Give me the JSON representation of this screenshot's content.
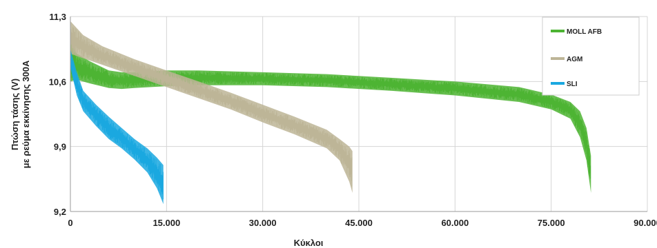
{
  "chart_data": {
    "type": "line",
    "title": "",
    "xlabel": "Κύκλοι",
    "ylabel_line1": "Πτώση τάσης (V)",
    "ylabel_line2": "με ρεύμα εκκίνησης 300A",
    "xlim": [
      0,
      90000
    ],
    "ylim": [
      9.2,
      11.3
    ],
    "x_ticks": [
      0,
      15000,
      30000,
      45000,
      60000,
      75000,
      90000
    ],
    "x_tick_labels": [
      "0",
      "15.000",
      "30.000",
      "45.000",
      "60.000",
      "75.000",
      "90.000"
    ],
    "y_ticks": [
      9.2,
      9.9,
      10.6,
      11.3
    ],
    "y_tick_labels": [
      "9,2",
      "9,9",
      "10,6",
      "11,3"
    ],
    "grid": true,
    "legend_position": "top-right",
    "series": [
      {
        "name": "MOLL AFB",
        "color": "#4db433",
        "band": [
          [
            0,
            10.6,
            11.05
          ],
          [
            1000,
            10.62,
            10.9
          ],
          [
            3000,
            10.58,
            10.82
          ],
          [
            6000,
            10.53,
            10.72
          ],
          [
            8000,
            10.52,
            10.7
          ],
          [
            10000,
            10.53,
            10.7
          ],
          [
            15000,
            10.55,
            10.72
          ],
          [
            20000,
            10.56,
            10.72
          ],
          [
            30000,
            10.56,
            10.7
          ],
          [
            40000,
            10.54,
            10.68
          ],
          [
            50000,
            10.5,
            10.64
          ],
          [
            60000,
            10.45,
            10.6
          ],
          [
            70000,
            10.38,
            10.54
          ],
          [
            75000,
            10.3,
            10.46
          ],
          [
            78000,
            10.2,
            10.38
          ],
          [
            79500,
            10.0,
            10.28
          ],
          [
            80500,
            9.75,
            10.1
          ],
          [
            81200,
            9.4,
            9.8
          ]
        ]
      },
      {
        "name": "AGM",
        "color": "#bdb597",
        "band": [
          [
            0,
            10.9,
            11.25
          ],
          [
            2000,
            10.85,
            11.1
          ],
          [
            5000,
            10.78,
            10.98
          ],
          [
            10000,
            10.66,
            10.84
          ],
          [
            15000,
            10.54,
            10.72
          ],
          [
            20000,
            10.42,
            10.6
          ],
          [
            25000,
            10.3,
            10.48
          ],
          [
            30000,
            10.16,
            10.35
          ],
          [
            35000,
            10.03,
            10.22
          ],
          [
            40000,
            9.88,
            10.08
          ],
          [
            42000,
            9.75,
            9.98
          ],
          [
            43500,
            9.52,
            9.9
          ],
          [
            44000,
            9.4,
            9.85
          ]
        ]
      },
      {
        "name": "SLI",
        "color": "#1aa8e0",
        "band": [
          [
            0,
            10.75,
            10.95
          ],
          [
            1000,
            10.45,
            10.7
          ],
          [
            2000,
            10.28,
            10.5
          ],
          [
            4000,
            10.12,
            10.35
          ],
          [
            6000,
            9.98,
            10.22
          ],
          [
            8000,
            9.88,
            10.1
          ],
          [
            10000,
            9.76,
            9.98
          ],
          [
            12000,
            9.62,
            9.88
          ],
          [
            13500,
            9.45,
            9.78
          ],
          [
            14500,
            9.28,
            9.7
          ]
        ]
      }
    ]
  }
}
